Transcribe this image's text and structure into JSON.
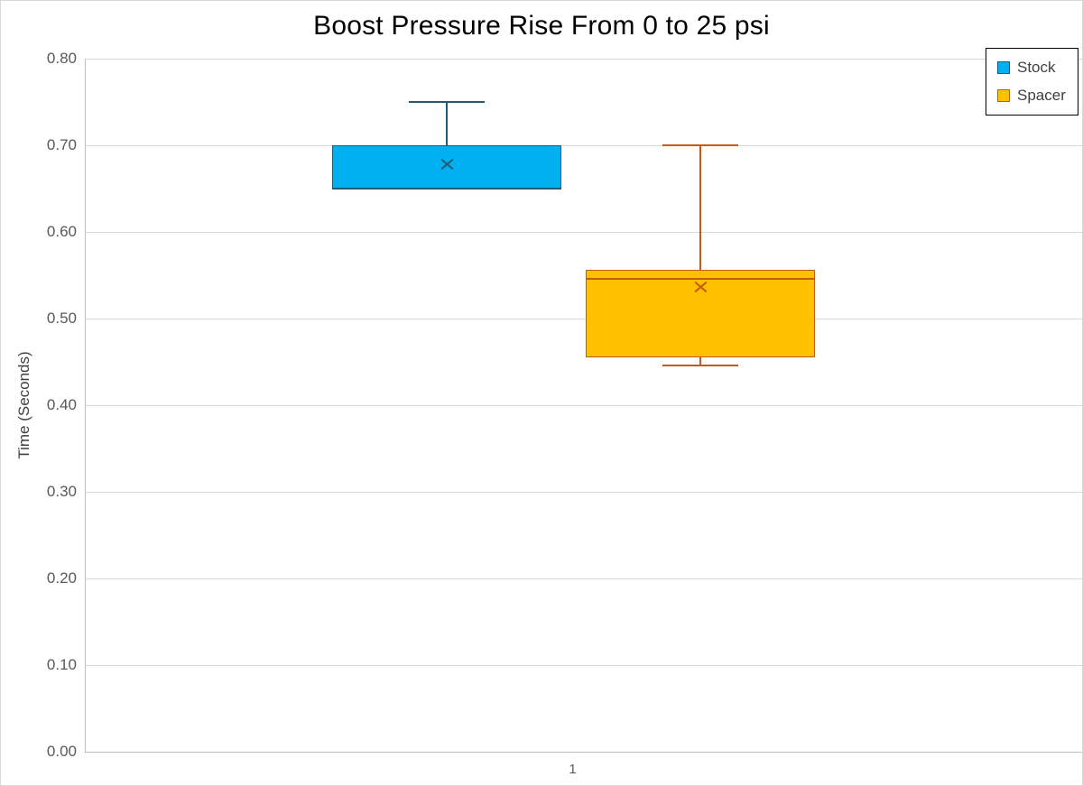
{
  "chart_data": {
    "type": "box",
    "title": "Boost Pressure Rise From 0 to 25 psi",
    "ylabel": "Time (Seconds)",
    "xlabel": "",
    "categories": [
      "1"
    ],
    "ylim": [
      0.0,
      0.8
    ],
    "ytick_step": 0.1,
    "ytick_labels": [
      "0.00",
      "0.10",
      "0.20",
      "0.30",
      "0.40",
      "0.50",
      "0.60",
      "0.70",
      "0.80"
    ],
    "grid": true,
    "legend_position": "top-right",
    "series": [
      {
        "name": "Stock",
        "fill_color": "#00B0F0",
        "line_color": "#1E5C74",
        "box": {
          "whisker_low": null,
          "q1": 0.65,
          "median": 0.65,
          "q3": 0.7,
          "whisker_high": 0.75,
          "mean": 0.678
        }
      },
      {
        "name": "Spacer",
        "fill_color": "#FFC000",
        "line_color": "#C55A11",
        "box": {
          "whisker_low": 0.446,
          "q1": 0.455,
          "median": 0.546,
          "q3": 0.556,
          "whisker_high": 0.7,
          "mean": 0.537
        }
      }
    ],
    "colors": {
      "gridline": "#D9D9D9",
      "axis_line": "#BFBFBF",
      "tick_label": "#595959",
      "legend_text": "#404040",
      "title": "#000000"
    }
  }
}
